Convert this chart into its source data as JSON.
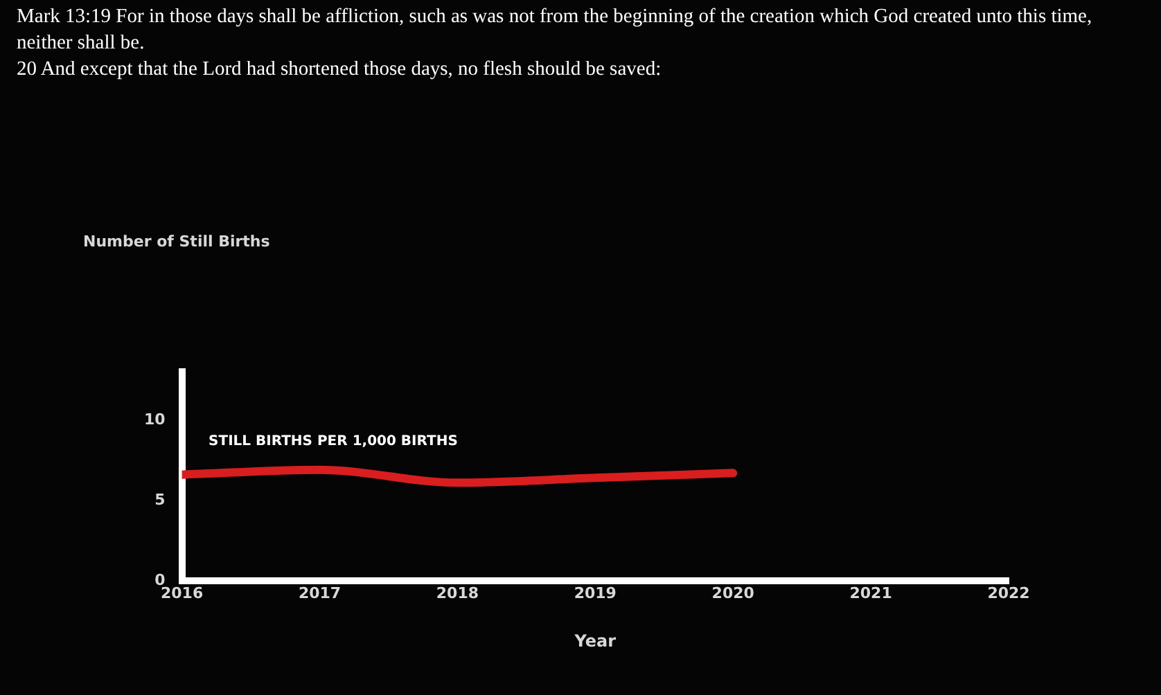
{
  "chart_data": {
    "type": "line",
    "title": "Mark 13:19 For in those days shall be affliction, such as was not from the beginning of the creation which God created unto this time, neither shall be.",
    "subtitle": "20 And except that the Lord had shortened those days, no flesh should be saved:",
    "annotations": [
      "Number of Still Births"
    ],
    "xlabel": "Year",
    "x": [
      2016,
      2017,
      2018,
      2019,
      2020
    ],
    "series": [
      {
        "name": "STILL BIRTHS PER 1,000 BIRTHS",
        "color": "#d81e1e",
        "values": [
          6.6,
          6.9,
          6.1,
          6.4,
          6.7
        ]
      }
    ],
    "xlim": [
      2016,
      2022
    ],
    "xticks": [
      2016,
      2017,
      2018,
      2019,
      2020,
      2021,
      2022
    ],
    "ylim": [
      0,
      13
    ],
    "yticks": [
      0,
      5,
      10
    ],
    "grid": false,
    "legend": false,
    "marker": "none",
    "line_style": "solid"
  }
}
